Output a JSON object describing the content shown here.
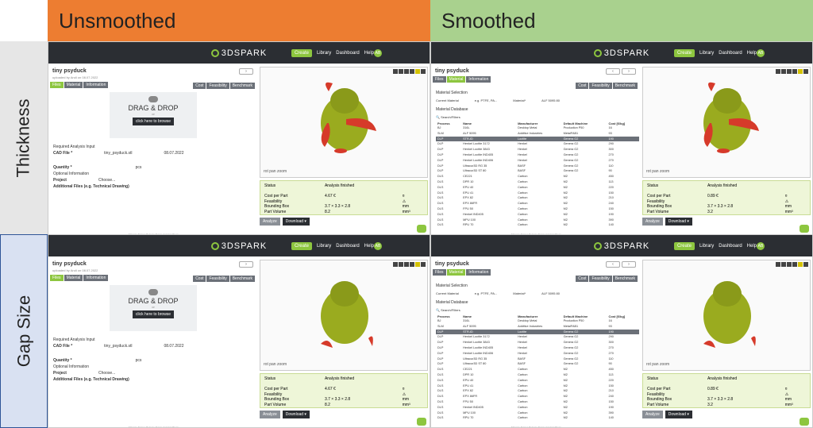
{
  "columns": {
    "unsmoothed": "Unsmoothed",
    "smoothed": "Smoothed"
  },
  "rows": {
    "thickness": "Thickness",
    "gap_size": "Gap Size"
  },
  "app": {
    "logo": "3DSPARK",
    "nav": {
      "create": "Create",
      "library": "Library",
      "dashboard": "Dashboard",
      "help": "Help"
    },
    "avatar": "AB",
    "part_name": "tiny psyduck",
    "uploaded": "uploaded by Andi on 08.07.2022",
    "tabs": {
      "files": "Files",
      "material": "Material",
      "information": "Information",
      "cost": "Cost",
      "feasibility": "Feasibility",
      "benchmark": "Benchmark"
    },
    "drop": {
      "title": "DRAG & DROP",
      "or": "or",
      "browse": "click here to browse"
    },
    "required": "Required Analysis Input",
    "cad_label": "CAD File *",
    "cad_file": "tiny_psyduck.stl",
    "cad_date": "08.07.2022",
    "quantity": "Quantity *",
    "quantity_unit": "pcs",
    "optional": "Optional Information",
    "project": "Project",
    "project_value": "Choose...",
    "additional": "Additional Files (e.g. Technical Drawing)",
    "viewer_controls": "rot  pan  zoom",
    "status": {
      "label": "Status",
      "value": "Analysis finished",
      "rows": [
        [
          "Cost per Part",
          "4.67 €",
          "",
          "¤"
        ],
        [
          "Feasibility",
          "",
          "",
          "⚠"
        ],
        [
          "Bounding Box",
          "3.7 × 3.3 × 2.8",
          "",
          "mm"
        ],
        [
          "Part Volume",
          "8.2",
          "",
          "mm³"
        ]
      ],
      "rows_smoothed": [
        [
          "Cost per Part",
          "0.89 €",
          "",
          "¤"
        ],
        [
          "Feasibility",
          "",
          "",
          "⚠"
        ],
        [
          "Bounding Box",
          "3.7 × 3.3 × 2.8",
          "",
          "mm"
        ],
        [
          "Part Volume",
          "3.2",
          "",
          "mm³"
        ]
      ]
    },
    "analyze": "Analyze",
    "download": "Download ▾",
    "footer": "Manage Notes | Release Terms and Conditions",
    "material": {
      "selection": "Material Selection",
      "current": "Current Material",
      "current_value": "e.g. PTFE, PA...",
      "material_label": "Material*",
      "material_value": "ALF 5095 80",
      "database": "Material Database",
      "search": "Search/Filters",
      "headers": [
        "Process",
        "Name",
        "Manufacturer",
        "Default Machine",
        "Cost [€/kg]"
      ],
      "rows": [
        [
          "BJ",
          "316L",
          "Desktop Metal",
          "Production P50",
          "16"
        ],
        [
          "SLM",
          "ALF 5095",
          "Additive Industries",
          "MetalFAB1",
          "93"
        ],
        [
          "DLP",
          "STR-ID",
          "Loctite",
          "Genera G2",
          "190"
        ],
        [
          "DLP",
          "Henkel Loctite 3172",
          "Henkel",
          "Genera G2",
          "290"
        ],
        [
          "DLP",
          "Henkel Loctite 3843",
          "Henkel",
          "Genera G2",
          "300"
        ],
        [
          "DLP",
          "Henkel Loctite IND405",
          "Henkel",
          "Genera G2",
          "270"
        ],
        [
          "DLP",
          "Henkel Loctite IND406",
          "Henkel",
          "Genera G2",
          "270"
        ],
        [
          "DLP",
          "Ultracur3D RG 35",
          "BASF",
          "Genera G2",
          "110"
        ],
        [
          "DLP",
          "Ultracur3D ST 80",
          "BASF",
          "Genera G2",
          "90"
        ],
        [
          "DLS",
          "CE221",
          "Carbon",
          "M2",
          "450"
        ],
        [
          "DLS",
          "DPR 10",
          "Carbon",
          "M2",
          "113"
        ],
        [
          "DLS",
          "EPU 40",
          "Carbon",
          "M2",
          "220"
        ],
        [
          "DLS",
          "EPU 41",
          "Carbon",
          "M2",
          "150"
        ],
        [
          "DLS",
          "EPX 82",
          "Carbon",
          "M2",
          "210"
        ],
        [
          "DLS",
          "EPX 86FR",
          "Carbon",
          "M2",
          "240"
        ],
        [
          "DLS",
          "FPU 50",
          "Carbon",
          "M2",
          "150"
        ],
        [
          "DLS",
          "Henkel IND405",
          "Carbon",
          "M2",
          "190"
        ],
        [
          "DLS",
          "MPU 100",
          "Carbon",
          "M2",
          "390"
        ],
        [
          "DLS",
          "RPU 70",
          "Carbon",
          "M2",
          "140"
        ]
      ]
    }
  }
}
